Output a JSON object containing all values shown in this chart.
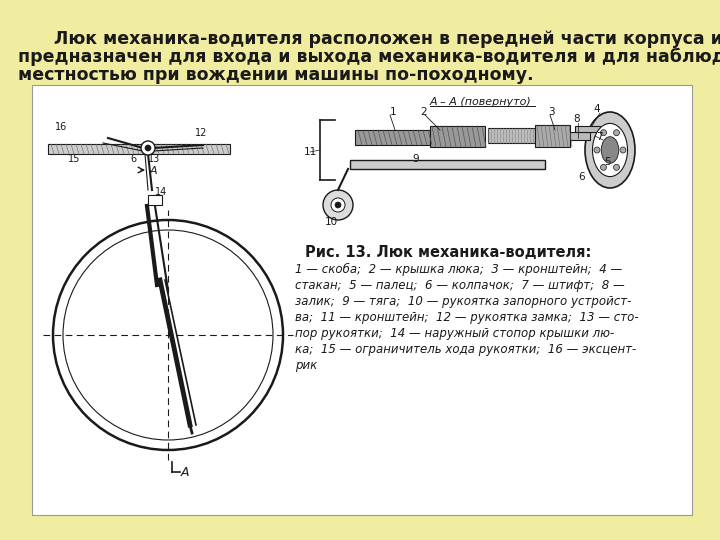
{
  "background_color": "#f0eda0",
  "title_line1": "    Люк механика-водителя расположен в передней части корпуса и",
  "title_line2": "предназначен для входа и выхода механика-водителя и для наблюдения за",
  "title_line3": "местностью при вождении машины по-походному.",
  "fig_label": "Рис. 13. Люк механика-водителя:",
  "legend_lines": [
    "1 — скоба;  2 — крышка люка;  3 — кронштейн;  4 —",
    "стакан;  5 — палец;  6 — колпачок;  7 — штифт;  8 —",
    "залик;  9 — тяга;  10 — рукоятка запорного устройст-",
    "ва;  11 — кронштейн;  12 — рукоятка замка;  13 — сто-",
    "пор рукоятки;  14 — наружный стопор крышки лю-",
    "ка;  15 — ограничитель хода рукоятки;  16 — эксцент-",
    "рик"
  ],
  "box_bg": "#ffffff",
  "lc": "#1a1a1a",
  "title_fs": 12.5,
  "legend_fs": 8.5,
  "fig_label_fs": 10.5
}
